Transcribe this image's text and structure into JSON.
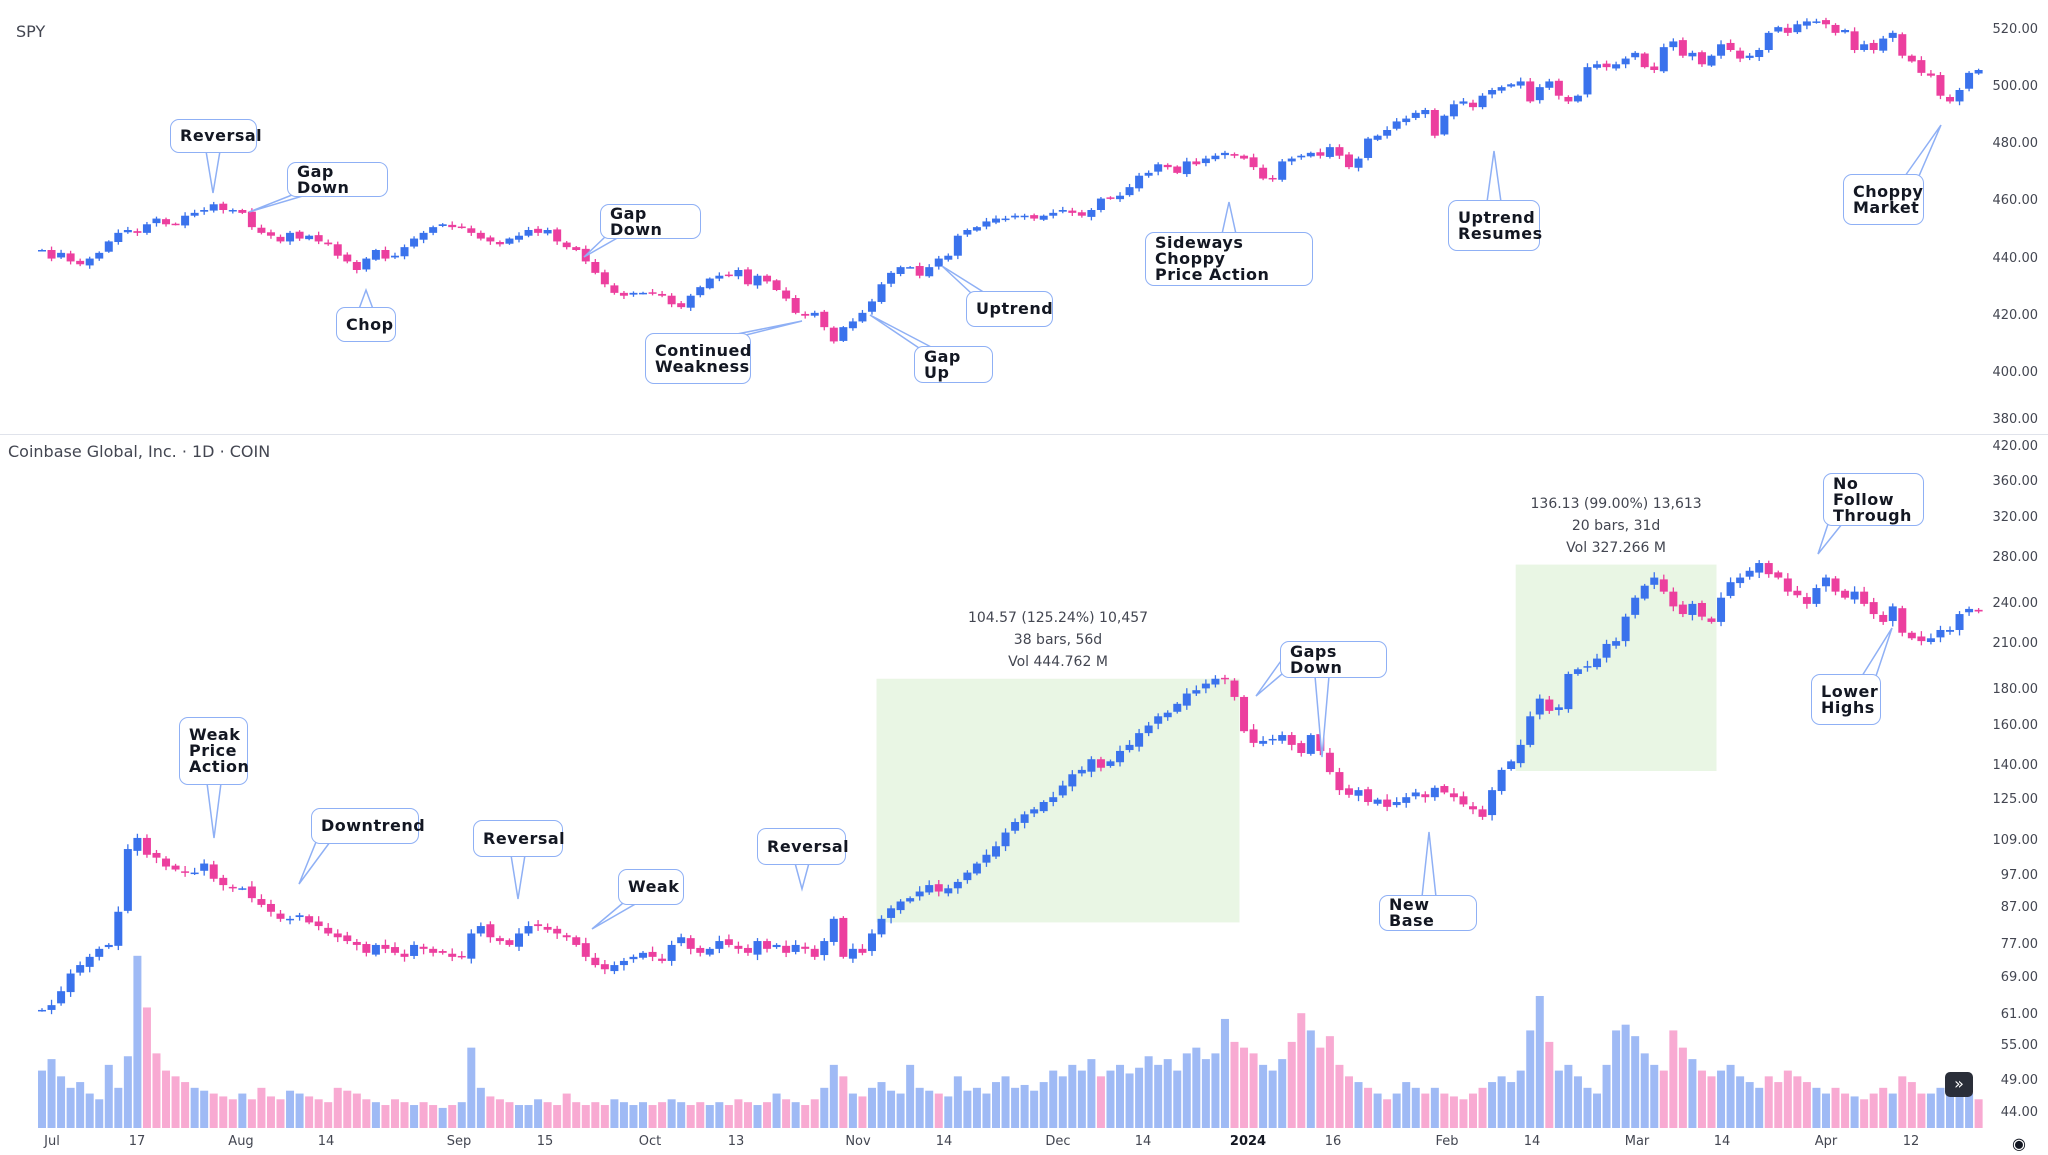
{
  "colors": {
    "up": "#3a72ec",
    "down": "#ec3f9e",
    "vol_up": "#9fbaf5",
    "vol_down": "#f8aad2",
    "callout_border": "#8fb0f5",
    "measure_fill": "#e9f6e4"
  },
  "chart_data": [
    {
      "type": "candlestick",
      "title": "SPY",
      "scale": "linear",
      "ylim": [
        380,
        525
      ],
      "y_ticks": [
        "520.00",
        "500.00",
        "480.00",
        "460.00",
        "440.00",
        "420.00",
        "400.00",
        "380.00"
      ],
      "closes": [
        443,
        440,
        442,
        439,
        438,
        440,
        442,
        446,
        449,
        450,
        449,
        452,
        454,
        452,
        452,
        455,
        456,
        457,
        459,
        457,
        457,
        456,
        451,
        449,
        448,
        446,
        449,
        447,
        448,
        446,
        445,
        441,
        439,
        436,
        440,
        443,
        440,
        441,
        444,
        447,
        449,
        451,
        452,
        451,
        451,
        449,
        447,
        446,
        445,
        447,
        448,
        450,
        449,
        450,
        446,
        444,
        443,
        439,
        435,
        431,
        428,
        427,
        428,
        428,
        428,
        427,
        424,
        423,
        427,
        430,
        433,
        434,
        434,
        436,
        431,
        434,
        432,
        429,
        426,
        421,
        420,
        421,
        416,
        411,
        416,
        418,
        421,
        425,
        431,
        435,
        437,
        437,
        434,
        437,
        440,
        441,
        448,
        450,
        451,
        453,
        454,
        454,
        455,
        455,
        454,
        455,
        456,
        457,
        456,
        455,
        457,
        461,
        461,
        462,
        465,
        469,
        470,
        473,
        472,
        470,
        474,
        473,
        475,
        476,
        477,
        476,
        475,
        472,
        468,
        468,
        474,
        475,
        476,
        477,
        476,
        479,
        476,
        472,
        475,
        482,
        483,
        485,
        488,
        489,
        491,
        492,
        483,
        490,
        494,
        495,
        493,
        497,
        499,
        500,
        501,
        502,
        495,
        500,
        502,
        497,
        495,
        497,
        507,
        508,
        507,
        508,
        510,
        512,
        507,
        506,
        514,
        516,
        511,
        512,
        508,
        511,
        515,
        513,
        510,
        511,
        513,
        519,
        521,
        519,
        522,
        523,
        523,
        522,
        519,
        520,
        513,
        515,
        513,
        517,
        519,
        511,
        509,
        505,
        504,
        497,
        495,
        499,
        505,
        506
      ],
      "annotations": [
        {
          "text": "Reversal"
        },
        {
          "text": "Gap Down"
        },
        {
          "text": "Chop"
        },
        {
          "text": "Gap Down"
        },
        {
          "text": "Continued\nWeakness"
        },
        {
          "text": "Gap Up"
        },
        {
          "text": "Uptrend"
        },
        {
          "text": "Sideways Choppy\nPrice Action"
        },
        {
          "text": "Uptrend\nResumes"
        },
        {
          "text": "Choppy\nMarket"
        }
      ]
    },
    {
      "type": "candlestick",
      "title": "Coinbase Global, Inc. · 1D · COIN",
      "scale": "log",
      "ylim": [
        42,
        420
      ],
      "y_ticks": [
        "420.00",
        "360.00",
        "320.00",
        "280.00",
        "240.00",
        "210.00",
        "180.00",
        "160.00",
        "140.00",
        "125.00",
        "109.00",
        "97.00",
        "87.00",
        "77.00",
        "69.00",
        "61.00",
        "55.00",
        "49.00",
        "44.00"
      ],
      "closes": [
        62,
        63,
        66,
        70,
        72,
        74,
        76,
        77,
        86,
        106,
        110,
        104,
        103,
        100,
        99,
        98,
        98,
        101,
        96,
        94,
        93,
        93,
        90,
        88,
        86,
        84,
        84,
        85,
        83,
        82,
        80,
        79,
        78,
        77,
        75,
        77,
        76,
        75,
        74,
        77,
        76,
        75,
        75,
        74,
        74,
        80,
        82,
        79,
        78,
        77,
        80,
        82,
        82,
        81,
        80,
        79,
        77,
        74,
        72,
        71,
        72,
        73,
        74,
        75,
        74,
        73,
        77,
        79,
        76,
        75,
        76,
        78,
        77,
        76,
        75,
        78,
        76,
        77,
        75,
        77,
        76,
        74,
        78,
        84,
        74,
        76,
        75,
        80,
        84,
        87,
        89,
        90,
        92,
        94,
        92,
        93,
        95,
        98,
        101,
        104,
        107,
        112,
        116,
        119,
        121,
        124,
        126,
        131,
        136,
        138,
        143,
        139,
        142,
        147,
        150,
        156,
        160,
        165,
        167,
        172,
        178,
        180,
        184,
        187,
        187,
        176,
        157,
        151,
        152,
        153,
        155,
        150,
        146,
        155,
        147,
        137,
        129,
        127,
        129,
        124,
        125,
        122,
        124,
        126,
        128,
        126,
        130,
        128,
        126,
        123,
        121,
        118,
        129,
        138,
        142,
        150,
        165,
        175,
        168,
        170,
        190,
        193,
        195,
        200,
        210,
        212,
        230,
        245,
        255,
        262,
        250,
        238,
        232,
        240,
        230,
        226,
        245,
        258,
        262,
        268,
        275,
        265,
        262,
        250,
        247,
        240,
        253,
        262,
        250,
        245,
        250,
        240,
        232,
        226,
        238,
        218,
        214,
        212,
        214,
        220,
        220,
        232,
        236,
        234
      ],
      "volume_millions": [
        20,
        24,
        18,
        14,
        16,
        12,
        10,
        22,
        14,
        25,
        60,
        42,
        26,
        20,
        18,
        16,
        14,
        13,
        12,
        11,
        10,
        12,
        10,
        14,
        11,
        10,
        13,
        12,
        11,
        10,
        9,
        14,
        13,
        12,
        10,
        9,
        8,
        10,
        9,
        8,
        9,
        8,
        7,
        8,
        9,
        28,
        14,
        11,
        10,
        9,
        8,
        8,
        10,
        9,
        8,
        12,
        9,
        8,
        9,
        8,
        10,
        9,
        8,
        9,
        8,
        9,
        10,
        9,
        8,
        9,
        8,
        9,
        8,
        10,
        9,
        8,
        9,
        12,
        10,
        9,
        8,
        10,
        14,
        22,
        18,
        12,
        11,
        14,
        16,
        13,
        12,
        22,
        14,
        13,
        12,
        11,
        18,
        13,
        14,
        12,
        16,
        18,
        14,
        15,
        13,
        16,
        20,
        18,
        22,
        20,
        24,
        18,
        20,
        22,
        19,
        21,
        25,
        22,
        24,
        20,
        26,
        28,
        24,
        26,
        38,
        30,
        28,
        26,
        22,
        20,
        24,
        30,
        40,
        34,
        28,
        32,
        22,
        18,
        16,
        14,
        12,
        10,
        12,
        16,
        14,
        12,
        14,
        12,
        11,
        10,
        12,
        14,
        16,
        18,
        16,
        20,
        34,
        46,
        30,
        20,
        22,
        18,
        14,
        12,
        22,
        34,
        36,
        32,
        26,
        22,
        20,
        34,
        28,
        24,
        20,
        18,
        20,
        22,
        18,
        16,
        14,
        18,
        16,
        20,
        18,
        16,
        14,
        12,
        14,
        12,
        11,
        10,
        12,
        14,
        12,
        18,
        16,
        12,
        12,
        14,
        16,
        12,
        12,
        10
      ],
      "measurements": [
        {
          "price_low": 83,
          "price_high": 187,
          "line1": "104.57 (125.24%) 10,457",
          "line2": "38 bars, 56d",
          "line3": "Vol 444.762 M"
        },
        {
          "price_low": 137.5,
          "price_high": 273.6,
          "line1": "136.13 (99.00%) 13,613",
          "line2": "20 bars, 31d",
          "line3": "Vol 327.266 M"
        }
      ],
      "annotations": [
        {
          "text": "Weak\nPrice\nAction"
        },
        {
          "text": "Downtrend"
        },
        {
          "text": "Reversal"
        },
        {
          "text": "Weak"
        },
        {
          "text": "Reversal"
        },
        {
          "text": "Gaps Down"
        },
        {
          "text": "New Base"
        },
        {
          "text": "No Follow\nThrough"
        },
        {
          "text": "Lower\nHighs"
        }
      ]
    }
  ],
  "x_ticks": [
    "Jul",
    "17",
    "Aug",
    "14",
    "Sep",
    "15",
    "Oct",
    "13",
    "Nov",
    "14",
    "Dec",
    "14",
    "2024",
    "16",
    "Feb",
    "14",
    "Mar",
    "14",
    "Apr",
    "12"
  ],
  "controls": {
    "scroll_right_label": "»",
    "eye_icon": "eye-icon"
  }
}
